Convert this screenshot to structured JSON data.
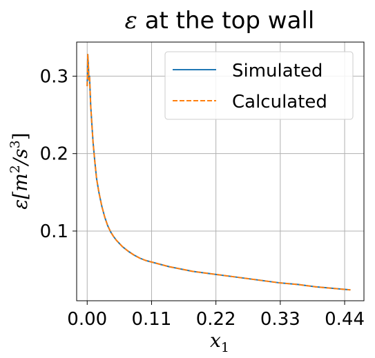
{
  "chart_data": {
    "type": "line",
    "title": "ε at the top wall",
    "title_symbol": "ε",
    "title_rest": " at the top wall",
    "xlabel": "x",
    "xlabel_sub": "1",
    "ylabel": "ε[m²/s³]",
    "ylabel_parts": {
      "sym": "ε[m",
      "exp1": "2",
      "mid": "/s",
      "exp2": "3",
      "end": "]"
    },
    "xlim": [
      -0.018,
      0.473
    ],
    "ylim": [
      0.01,
      0.344
    ],
    "x_ticks": [
      0.0,
      0.11,
      0.22,
      0.33,
      0.44
    ],
    "x_tick_labels": [
      "0.00",
      "0.11",
      "0.22",
      "0.33",
      "0.44"
    ],
    "y_ticks": [
      0.1,
      0.2,
      0.3
    ],
    "y_tick_labels": [
      "0.1",
      "0.2",
      "0.3"
    ],
    "grid": true,
    "legend_position": "top-right",
    "series": [
      {
        "name": "Simulated",
        "color": "#1f77b4",
        "dash": "solid",
        "x": [
          0.0,
          0.001,
          0.002,
          0.003,
          0.004,
          0.006,
          0.008,
          0.01,
          0.013,
          0.016,
          0.02,
          0.025,
          0.03,
          0.035,
          0.04,
          0.045,
          0.05,
          0.06,
          0.07,
          0.08,
          0.09,
          0.1,
          0.11,
          0.125,
          0.14,
          0.16,
          0.18,
          0.2,
          0.22,
          0.25,
          0.28,
          0.31,
          0.33,
          0.36,
          0.39,
          0.42,
          0.45
        ],
        "y": [
          0.287,
          0.328,
          0.315,
          0.295,
          0.3,
          0.262,
          0.238,
          0.215,
          0.19,
          0.168,
          0.15,
          0.132,
          0.118,
          0.107,
          0.099,
          0.093,
          0.088,
          0.08,
          0.074,
          0.069,
          0.065,
          0.062,
          0.06,
          0.057,
          0.054,
          0.051,
          0.048,
          0.046,
          0.044,
          0.041,
          0.038,
          0.035,
          0.033,
          0.031,
          0.028,
          0.026,
          0.024
        ]
      },
      {
        "name": "Calculated",
        "color": "#ff7f0e",
        "dash": "dashed",
        "x": [
          0.0,
          0.001,
          0.002,
          0.003,
          0.004,
          0.006,
          0.008,
          0.01,
          0.013,
          0.016,
          0.02,
          0.025,
          0.03,
          0.035,
          0.04,
          0.045,
          0.05,
          0.06,
          0.07,
          0.08,
          0.09,
          0.1,
          0.11,
          0.125,
          0.14,
          0.16,
          0.18,
          0.2,
          0.22,
          0.25,
          0.28,
          0.31,
          0.33,
          0.36,
          0.39,
          0.42,
          0.45
        ],
        "y": [
          0.287,
          0.328,
          0.315,
          0.295,
          0.3,
          0.262,
          0.238,
          0.215,
          0.19,
          0.168,
          0.15,
          0.132,
          0.118,
          0.107,
          0.099,
          0.093,
          0.088,
          0.08,
          0.074,
          0.069,
          0.065,
          0.062,
          0.06,
          0.057,
          0.054,
          0.051,
          0.048,
          0.046,
          0.044,
          0.041,
          0.038,
          0.035,
          0.033,
          0.031,
          0.028,
          0.026,
          0.024
        ]
      }
    ]
  }
}
